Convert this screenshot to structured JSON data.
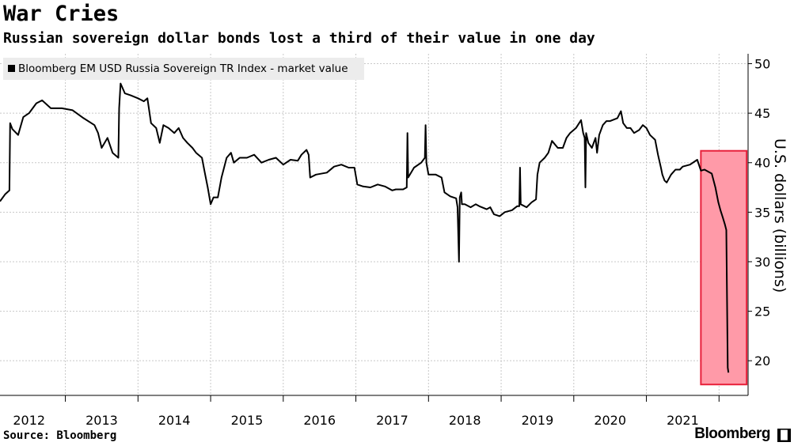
{
  "header": {
    "title": "War Cries",
    "subtitle": "Russian sovereign dollar bonds lost a third of their value in one day"
  },
  "footer": {
    "source": "Source: Bloomberg",
    "brand": "Bloomberg"
  },
  "colors": {
    "line": "#000000",
    "highlight_fill": "#ff9aa8",
    "highlight_border": "#e8203a",
    "grid": "#c8c8c8",
    "legend_bg": "#ececec"
  },
  "chart_data": {
    "type": "line",
    "title": "War Cries",
    "subtitle": "Russian sovereign dollar bonds lost a third of their value in one day",
    "ylabel": "U.S. dollars (billions)",
    "xlabel": "",
    "ylim": [
      16.5,
      51
    ],
    "y_ticks": [
      20,
      25,
      30,
      35,
      40,
      45,
      50
    ],
    "x_range": [
      2011.6,
      2021.9
    ],
    "x_ticks": [
      "2012",
      "2013",
      "2014",
      "2015",
      "2016",
      "2017",
      "2018",
      "2019",
      "2020",
      "2021"
    ],
    "grid": true,
    "legend_position": "top-left",
    "series": [
      {
        "name": "Bloomberg EM USD Russia Sovereign TR Index - market value",
        "points": [
          [
            2011.6,
            36.1
          ],
          [
            2011.67,
            36.8
          ],
          [
            2011.73,
            37.2
          ],
          [
            2011.74,
            44.0
          ],
          [
            2011.77,
            43.4
          ],
          [
            2011.85,
            42.8
          ],
          [
            2011.92,
            44.6
          ],
          [
            2012.0,
            45.0
          ],
          [
            2012.1,
            46.0
          ],
          [
            2012.18,
            46.3
          ],
          [
            2012.3,
            45.5
          ],
          [
            2012.45,
            45.5
          ],
          [
            2012.6,
            45.3
          ],
          [
            2012.75,
            44.5
          ],
          [
            2012.9,
            43.8
          ],
          [
            2012.95,
            43.0
          ],
          [
            2013.0,
            41.5
          ],
          [
            2013.08,
            42.5
          ],
          [
            2013.15,
            41.0
          ],
          [
            2013.23,
            40.5
          ],
          [
            2013.24,
            45.5
          ],
          [
            2013.26,
            48.0
          ],
          [
            2013.32,
            47.0
          ],
          [
            2013.4,
            46.8
          ],
          [
            2013.5,
            46.5
          ],
          [
            2013.58,
            46.2
          ],
          [
            2013.63,
            46.5
          ],
          [
            2013.68,
            44.0
          ],
          [
            2013.75,
            43.5
          ],
          [
            2013.8,
            42.0
          ],
          [
            2013.85,
            43.8
          ],
          [
            2013.92,
            43.5
          ],
          [
            2014.0,
            43.0
          ],
          [
            2014.06,
            43.5
          ],
          [
            2014.12,
            42.5
          ],
          [
            2014.18,
            42.0
          ],
          [
            2014.25,
            41.5
          ],
          [
            2014.3,
            41.0
          ],
          [
            2014.38,
            40.5
          ],
          [
            2014.42,
            39.0
          ],
          [
            2014.46,
            37.5
          ],
          [
            2014.5,
            35.8
          ],
          [
            2014.54,
            36.5
          ],
          [
            2014.6,
            36.5
          ],
          [
            2014.65,
            38.5
          ],
          [
            2014.72,
            40.5
          ],
          [
            2014.78,
            41.0
          ],
          [
            2014.82,
            40.0
          ],
          [
            2014.9,
            40.5
          ],
          [
            2015.0,
            40.5
          ],
          [
            2015.1,
            40.8
          ],
          [
            2015.2,
            40.0
          ],
          [
            2015.3,
            40.3
          ],
          [
            2015.4,
            40.5
          ],
          [
            2015.5,
            39.8
          ],
          [
            2015.6,
            40.3
          ],
          [
            2015.7,
            40.2
          ],
          [
            2015.75,
            40.8
          ],
          [
            2015.82,
            41.3
          ],
          [
            2015.85,
            40.8
          ],
          [
            2015.87,
            38.5
          ],
          [
            2015.95,
            38.8
          ],
          [
            2016.1,
            39.0
          ],
          [
            2016.2,
            39.6
          ],
          [
            2016.3,
            39.8
          ],
          [
            2016.4,
            39.5
          ],
          [
            2016.48,
            39.5
          ],
          [
            2016.52,
            37.8
          ],
          [
            2016.6,
            37.6
          ],
          [
            2016.7,
            37.5
          ],
          [
            2016.8,
            37.8
          ],
          [
            2016.9,
            37.6
          ],
          [
            2017.0,
            37.2
          ],
          [
            2017.05,
            37.3
          ],
          [
            2017.15,
            37.3
          ],
          [
            2017.2,
            37.5
          ],
          [
            2017.21,
            43.0
          ],
          [
            2017.22,
            38.5
          ],
          [
            2017.3,
            39.5
          ],
          [
            2017.4,
            40.0
          ],
          [
            2017.45,
            40.5
          ],
          [
            2017.46,
            43.8
          ],
          [
            2017.47,
            40.0
          ],
          [
            2017.5,
            38.8
          ],
          [
            2017.6,
            38.8
          ],
          [
            2017.68,
            38.5
          ],
          [
            2017.72,
            37.0
          ],
          [
            2017.8,
            36.6
          ],
          [
            2017.88,
            36.4
          ],
          [
            2017.9,
            35.5
          ],
          [
            2017.92,
            30.0
          ],
          [
            2017.93,
            36.5
          ],
          [
            2017.95,
            37.0
          ],
          [
            2017.96,
            35.8
          ],
          [
            2018.0,
            35.8
          ],
          [
            2018.08,
            35.5
          ],
          [
            2018.15,
            35.8
          ],
          [
            2018.2,
            35.6
          ],
          [
            2018.3,
            35.3
          ],
          [
            2018.35,
            35.5
          ],
          [
            2018.4,
            34.8
          ],
          [
            2018.48,
            34.6
          ],
          [
            2018.55,
            35.0
          ],
          [
            2018.65,
            35.2
          ],
          [
            2018.72,
            35.6
          ],
          [
            2018.75,
            35.6
          ],
          [
            2018.76,
            39.5
          ],
          [
            2018.77,
            35.8
          ],
          [
            2018.85,
            35.5
          ],
          [
            2018.92,
            36.0
          ],
          [
            2018.98,
            36.3
          ],
          [
            2019.0,
            38.8
          ],
          [
            2019.03,
            40.0
          ],
          [
            2019.1,
            40.5
          ],
          [
            2019.15,
            41.0
          ],
          [
            2019.2,
            42.2
          ],
          [
            2019.28,
            41.5
          ],
          [
            2019.35,
            41.5
          ],
          [
            2019.4,
            42.5
          ],
          [
            2019.45,
            43.0
          ],
          [
            2019.53,
            43.5
          ],
          [
            2019.6,
            44.3
          ],
          [
            2019.63,
            43.0
          ],
          [
            2019.65,
            42.5
          ],
          [
            2019.66,
            37.5
          ],
          [
            2019.67,
            43.0
          ],
          [
            2019.7,
            42.0
          ],
          [
            2019.75,
            41.5
          ],
          [
            2019.8,
            42.5
          ],
          [
            2019.82,
            41.0
          ],
          [
            2019.85,
            42.8
          ],
          [
            2019.9,
            43.8
          ],
          [
            2019.95,
            44.2
          ],
          [
            2020.0,
            44.2
          ],
          [
            2020.1,
            44.5
          ],
          [
            2020.15,
            45.2
          ],
          [
            2020.18,
            44.0
          ],
          [
            2020.23,
            43.5
          ],
          [
            2020.28,
            43.5
          ],
          [
            2020.33,
            43.0
          ],
          [
            2020.4,
            43.3
          ],
          [
            2020.45,
            43.8
          ],
          [
            2020.5,
            43.5
          ],
          [
            2020.55,
            42.8
          ],
          [
            2020.62,
            42.3
          ],
          [
            2020.66,
            40.8
          ],
          [
            2020.7,
            39.5
          ],
          [
            2020.72,
            38.8
          ],
          [
            2020.75,
            38.2
          ],
          [
            2020.78,
            38.0
          ],
          [
            2020.84,
            38.8
          ],
          [
            2020.9,
            39.3
          ],
          [
            2020.96,
            39.3
          ],
          [
            2021.0,
            39.6
          ],
          [
            2021.1,
            39.8
          ],
          [
            2021.2,
            40.3
          ],
          [
            2021.25,
            39.2
          ],
          [
            2021.3,
            39.3
          ],
          [
            2021.35,
            39.1
          ],
          [
            2021.4,
            38.9
          ],
          [
            2021.45,
            37.5
          ],
          [
            2021.49,
            36.0
          ],
          [
            2021.52,
            35.2
          ],
          [
            2021.55,
            34.5
          ],
          [
            2021.58,
            33.8
          ],
          [
            2021.6,
            33.2
          ],
          [
            2021.62,
            19.3
          ],
          [
            2021.63,
            18.8
          ]
        ]
      }
    ],
    "highlight": {
      "x_start": 2021.25,
      "x_end": 2021.88,
      "y_low": 17.6,
      "y_high": 41.2
    }
  }
}
